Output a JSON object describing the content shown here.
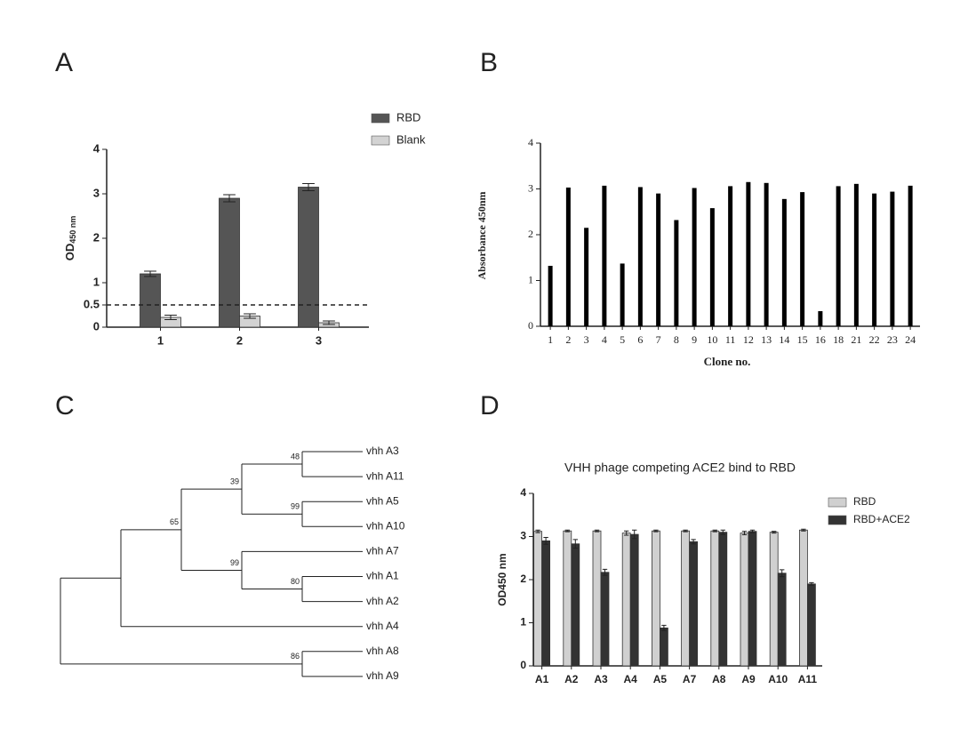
{
  "chart_data": [
    {
      "panel": "A",
      "type": "grouped_bar",
      "categories": [
        "1",
        "2",
        "3"
      ],
      "series": [
        {
          "name": "RBD",
          "color": "#555555",
          "values": [
            1.2,
            2.9,
            3.15
          ],
          "errors": [
            0.06,
            0.08,
            0.08
          ]
        },
        {
          "name": "Blank",
          "color": "#d3d3d3",
          "values": [
            0.22,
            0.25,
            0.1
          ],
          "errors": [
            0.05,
            0.05,
            0.04
          ]
        }
      ],
      "ylabel": "OD",
      "ylabel_subscript": "450 nm",
      "ylim": [
        0,
        4
      ],
      "yticks": [
        0,
        0.5,
        1,
        2,
        3,
        4
      ],
      "hline": 0.5
    },
    {
      "panel": "B",
      "type": "bar",
      "color": "#000000",
      "categories": [
        "1",
        "2",
        "3",
        "4",
        "5",
        "6",
        "7",
        "8",
        "9",
        "10",
        "11",
        "12",
        "13",
        "14",
        "15",
        "16",
        "18",
        "21",
        "22",
        "23",
        "24"
      ],
      "values": [
        1.32,
        3.03,
        2.15,
        3.07,
        1.37,
        3.04,
        2.9,
        2.32,
        3.02,
        2.58,
        3.06,
        3.15,
        3.13,
        2.78,
        2.93,
        0.33,
        3.06,
        3.11,
        2.9,
        2.94,
        3.07
      ],
      "ylabel": "Absorbance 450nm",
      "xlabel": "Clone no.",
      "ylim": [
        0,
        4
      ],
      "yticks": [
        0,
        1,
        2,
        3,
        4
      ]
    },
    {
      "panel": "C",
      "type": "tree",
      "tree": {
        "children": [
          {
            "children": [
              {
                "support": 65,
                "children": [
                  {
                    "support": 39,
                    "children": [
                      {
                        "support": 48,
                        "children": [
                          "vhh A3",
                          "vhh A11"
                        ]
                      },
                      {
                        "support": 99,
                        "children": [
                          "vhh A5",
                          "vhh A10"
                        ]
                      }
                    ]
                  },
                  {
                    "support": 99,
                    "children": [
                      "vhh A7",
                      {
                        "support": 80,
                        "children": [
                          "vhh A1",
                          "vhh A2"
                        ]
                      }
                    ]
                  }
                ]
              },
              "vhh A4"
            ]
          },
          {
            "support": 86,
            "children": [
              "vhh A8",
              "vhh A9"
            ]
          }
        ]
      }
    },
    {
      "panel": "D",
      "type": "grouped_bar",
      "title": "VHH phage competing ACE2 bind to RBD",
      "categories": [
        "A1",
        "A2",
        "A3",
        "A4",
        "A5",
        "A7",
        "A8",
        "A9",
        "A10",
        "A11"
      ],
      "series": [
        {
          "name": "RBD",
          "color": "#d0d0d0",
          "values": [
            3.12,
            3.13,
            3.13,
            3.08,
            3.13,
            3.13,
            3.13,
            3.08,
            3.1,
            3.15
          ],
          "errors": [
            0.03,
            0.02,
            0.02,
            0.05,
            0.02,
            0.02,
            0.02,
            0.04,
            0.02,
            0.02
          ]
        },
        {
          "name": "RBD+ACE2",
          "color": "#333333",
          "values": [
            2.9,
            2.83,
            2.17,
            3.05,
            0.88,
            2.88,
            3.1,
            3.12,
            2.15,
            1.9
          ],
          "errors": [
            0.08,
            0.1,
            0.07,
            0.1,
            0.06,
            0.05,
            0.05,
            0.03,
            0.08,
            0.03
          ]
        }
      ],
      "ylabel": "OD450 nm",
      "ylim": [
        0,
        4
      ],
      "yticks": [
        0,
        1,
        2,
        3,
        4
      ]
    }
  ]
}
